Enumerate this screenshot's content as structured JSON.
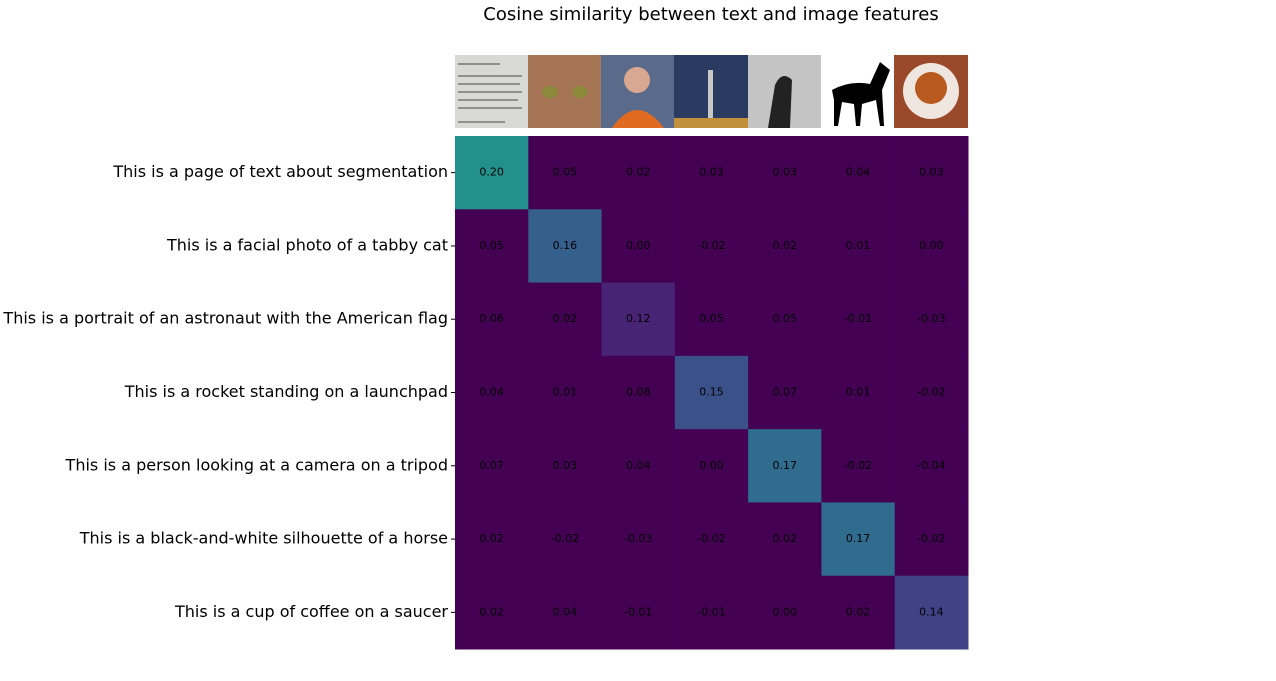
{
  "chart_data": {
    "type": "heatmap",
    "title": "Cosine similarity between text and image features",
    "rows": [
      "This is a page of text about segmentation",
      "This is a facial photo of a tabby cat",
      "This is a portrait of an astronaut with the American flag",
      "This is a rocket standing on a launchpad",
      "This is a person looking at a camera on a tripod",
      "This is a black-and-white silhouette of a horse",
      "This is a cup of coffee on a saucer"
    ],
    "values": [
      [
        0.2,
        0.05,
        0.02,
        0.03,
        0.03,
        0.04,
        0.03
      ],
      [
        0.05,
        0.16,
        0.0,
        -0.02,
        0.02,
        0.01,
        0.0
      ],
      [
        0.06,
        0.02,
        0.12,
        0.05,
        0.05,
        -0.01,
        -0.03
      ],
      [
        0.04,
        0.01,
        0.08,
        0.15,
        0.07,
        0.01,
        -0.02
      ],
      [
        0.07,
        0.03,
        0.04,
        0.0,
        0.17,
        -0.02,
        -0.04
      ],
      [
        0.02,
        -0.02,
        -0.03,
        -0.02,
        0.02,
        0.17,
        -0.02
      ],
      [
        0.02,
        0.04,
        -0.01,
        -0.01,
        0.0,
        0.02,
        0.14
      ]
    ],
    "value_labels": [
      [
        "0.20",
        "0.05",
        "0.02",
        "0.03",
        "0.03",
        "0.04",
        "0.03"
      ],
      [
        "0.05",
        "0.16",
        "0.00",
        "-0.02",
        "0.02",
        "0.01",
        "0.00"
      ],
      [
        "0.06",
        "0.02",
        "0.12",
        "0.05",
        "0.05",
        "-0.01",
        "-0.03"
      ],
      [
        "0.04",
        "0.01",
        "0.08",
        "0.15",
        "0.07",
        "0.01",
        "-0.02"
      ],
      [
        "0.07",
        "0.03",
        "0.04",
        "0.00",
        "0.17",
        "-0.02",
        "-0.04"
      ],
      [
        "0.02",
        "-0.02",
        "-0.03",
        "-0.02",
        "0.02",
        "0.17",
        "-0.02"
      ],
      [
        "0.02",
        "0.04",
        "-0.01",
        "-0.01",
        "0.00",
        "0.02",
        "0.14"
      ]
    ],
    "colormap": "viridis",
    "clim": [
      0.1,
      0.3
    ]
  }
}
